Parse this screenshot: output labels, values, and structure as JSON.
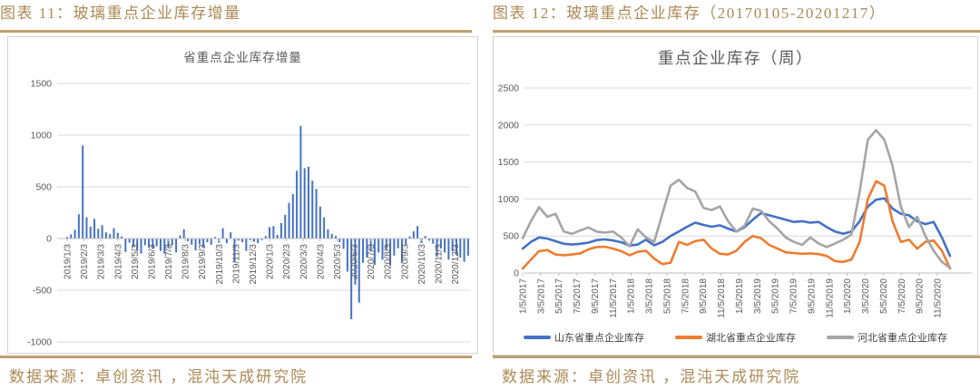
{
  "colors": {
    "gold_text": "#ac8a55",
    "gold_line": "#bda06c",
    "title_gray": "#595959",
    "axis_label_gray": "#595959",
    "gridline": "#d9d9d9",
    "axis_line": "#bfbfbf",
    "bar_blue": "#4472c4",
    "line_blue": "#4472c4",
    "line_orange": "#ed7d31",
    "line_gray": "#a5a5a5",
    "legend_text": "#404040",
    "box_border": "#d4d4d4"
  },
  "left_panel": {
    "heading": "图表 11：玻璃重点企业库存增量",
    "source": "数据来源：卓创资讯 ，混沌天成研究院",
    "chart_data": {
      "type": "bar",
      "title": "省重点企业库存增量",
      "xlabel": "",
      "ylabel": "",
      "ylim": [
        -1000,
        1500
      ],
      "yticks": [
        1500,
        1000,
        500,
        0,
        -500,
        -1000
      ],
      "grid": true,
      "bar_color": "#4472c4",
      "x_tick_labels": [
        "2019/1/3",
        "2019/2/3",
        "2019/3/3",
        "2019/4/3",
        "2019/5/3",
        "2019/6/3",
        "2019/7/3",
        "2019/8/3",
        "2019/9/3",
        "2019/10/3",
        "2019/11/3",
        "2019/12/3",
        "2020/1/3",
        "2020/2/3",
        "2020/3/3",
        "2020/4/3",
        "2020/5/3",
        "2020/6/3",
        "2020/7/3",
        "2020/8/3",
        "2020/9/3",
        "2020/10/3",
        "2020/11/3",
        "2020/12/3"
      ],
      "values": [
        15,
        40,
        85,
        235,
        900,
        205,
        115,
        190,
        95,
        130,
        60,
        45,
        100,
        55,
        20,
        -130,
        -40,
        -80,
        -115,
        -145,
        -65,
        -85,
        -100,
        -75,
        -120,
        -145,
        -95,
        -65,
        -135,
        30,
        90,
        -25,
        -60,
        -115,
        -55,
        -85,
        -35,
        -60,
        15,
        -40,
        100,
        -45,
        60,
        -230,
        -20,
        -35,
        -120,
        -15,
        -30,
        -45,
        -15,
        25,
        110,
        120,
        35,
        150,
        230,
        345,
        430,
        655,
        1090,
        680,
        695,
        560,
        480,
        310,
        205,
        90,
        45,
        25,
        -35,
        -100,
        -320,
        -780,
        -445,
        -620,
        -235,
        -185,
        -125,
        -255,
        -135,
        -205,
        -115,
        -260,
        -165,
        -95,
        -235,
        -65,
        20,
        70,
        120,
        -45,
        25,
        -20,
        -50,
        -175,
        -95,
        -135,
        -205,
        -125,
        -155,
        -185,
        -225,
        -165
      ]
    }
  },
  "right_panel": {
    "heading": "图表 12：玻璃重点企业库存（20170105-20201217）",
    "source": "数据来源：卓创资讯 ，混沌天成研究院",
    "chart_data": {
      "type": "line",
      "title": "重点企业库存（周）",
      "xlabel": "",
      "ylabel": "",
      "ylim": [
        0,
        2500
      ],
      "yticks": [
        2500,
        2000,
        1500,
        1000,
        500,
        0
      ],
      "grid": true,
      "legend_position": "bottom",
      "x_tick_labels": [
        "1/5/2017",
        "3/5/2017",
        "5/5/2017",
        "7/5/2017",
        "9/5/2017",
        "11/5/2017",
        "1/5/2018",
        "3/5/2018",
        "5/5/2018",
        "7/5/2018",
        "9/5/2018",
        "11/5/2018",
        "1/5/2019",
        "3/5/2019",
        "5/5/2019",
        "7/5/2019",
        "9/5/2019",
        "11/5/2019",
        "1/5/2020",
        "3/5/2020",
        "5/5/2020",
        "7/5/2020",
        "9/5/2020",
        "11/5/2020"
      ],
      "series": [
        {
          "key": "shandong",
          "name": "山东省重点企业库存",
          "color": "#4472c4",
          "values": [
            330,
            420,
            480,
            465,
            430,
            395,
            385,
            395,
            410,
            445,
            455,
            440,
            415,
            370,
            385,
            450,
            375,
            420,
            500,
            560,
            625,
            680,
            650,
            625,
            645,
            600,
            560,
            620,
            720,
            810,
            780,
            750,
            720,
            690,
            700,
            680,
            690,
            620,
            560,
            530,
            560,
            700,
            900,
            990,
            1010,
            870,
            800,
            780,
            700,
            660,
            690,
            480,
            230
          ]
        },
        {
          "key": "hubei",
          "name": "湖北省重点企业库存",
          "color": "#ed7d31",
          "values": [
            60,
            180,
            295,
            310,
            250,
            240,
            250,
            265,
            320,
            350,
            355,
            330,
            295,
            240,
            285,
            300,
            195,
            120,
            140,
            420,
            380,
            430,
            450,
            330,
            260,
            250,
            300,
            420,
            500,
            470,
            380,
            330,
            280,
            270,
            260,
            265,
            255,
            230,
            160,
            150,
            180,
            420,
            1000,
            1240,
            1180,
            700,
            420,
            450,
            330,
            420,
            440,
            300,
            60
          ]
        },
        {
          "key": "hebei",
          "name": "河北省重点企业库存",
          "color": "#a5a5a5",
          "values": [
            470,
            700,
            890,
            760,
            800,
            560,
            530,
            575,
            615,
            560,
            545,
            560,
            480,
            360,
            590,
            480,
            420,
            800,
            1180,
            1260,
            1150,
            1100,
            880,
            850,
            900,
            700,
            560,
            640,
            870,
            840,
            700,
            600,
            480,
            420,
            380,
            480,
            400,
            350,
            400,
            450,
            520,
            1100,
            1800,
            1930,
            1800,
            1450,
            900,
            620,
            760,
            500,
            300,
            150,
            70
          ]
        }
      ]
    }
  }
}
